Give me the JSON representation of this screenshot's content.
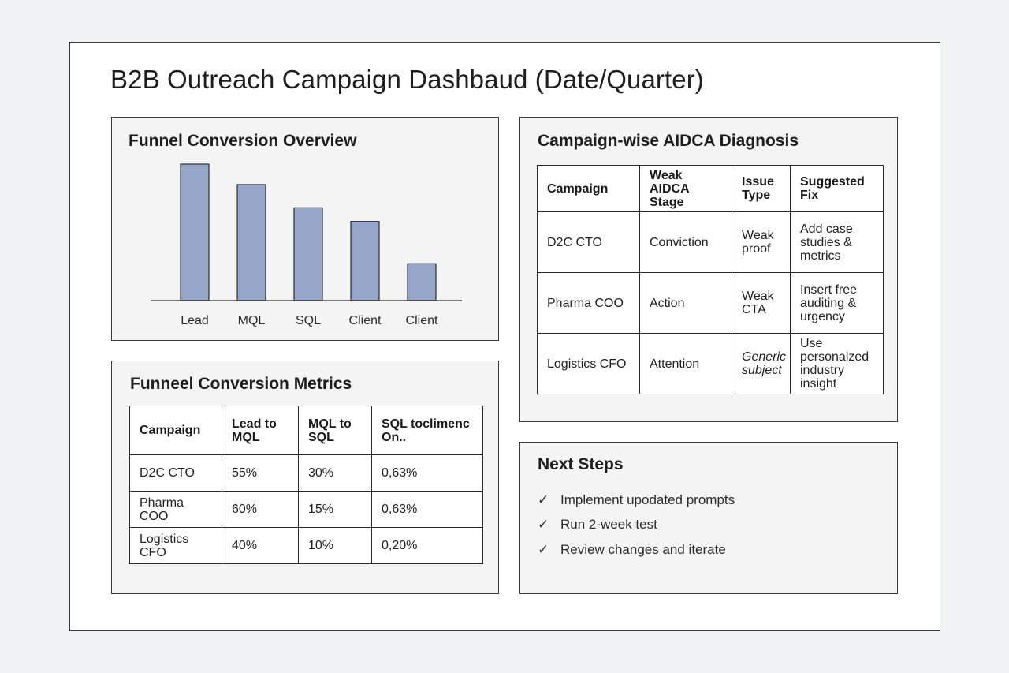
{
  "page": {
    "title": "B2B Outreach Campaign Dashbaud (Date/Quarter)"
  },
  "funnel_chart": {
    "title": "Funnel Conversion Overview"
  },
  "chart_data": {
    "type": "bar",
    "title": "Funnel Conversion Overview",
    "categories": [
      "Lead",
      "MQL",
      "SQL",
      "Client",
      "Client"
    ],
    "values": [
      100,
      85,
      68,
      58,
      27
    ],
    "xlabel": "",
    "ylabel": "",
    "ylim": [
      0,
      100
    ],
    "grid": false,
    "bar_color": "#96a6c8"
  },
  "metrics": {
    "title": "Funneel Conversion Metrics",
    "headers": [
      "Campaign",
      "Lead to MQL",
      "MQL to SQL",
      "SQL toclimenc On.."
    ],
    "rows": [
      [
        "D2C CTO",
        "55%",
        "30%",
        "0,63%"
      ],
      [
        "Pharma COO",
        "60%",
        "15%",
        "0,63%"
      ],
      [
        "Logistics CFO",
        "40%",
        "10%",
        "0,20%"
      ]
    ]
  },
  "diagnosis": {
    "title": "Campaign-wise AIDCA Diagnosis",
    "headers": [
      "Campaign",
      "Weak AIDCA Stage",
      "Issue Type",
      "Suggested Fix"
    ],
    "rows": [
      [
        "D2C CTO",
        "Conviction",
        "Weak proof",
        "Add case studies & metrics"
      ],
      [
        "Pharma COO",
        "Action",
        "Weak CTA",
        "Insert free auditing & urgency"
      ],
      [
        "Logistics CFO",
        "Attention",
        "Generic subject",
        "Use personalzed industry insight"
      ]
    ]
  },
  "next_steps": {
    "title": "Next Steps",
    "check_icon": "✓",
    "items": [
      "Implement upodated prompts",
      "Run 2-week test",
      "Review changes and iterate"
    ]
  },
  "colors": {
    "background": "#f1f2f4",
    "panel": "#f4f4f5",
    "border": "#3a3a3a",
    "bar": "#96a6c8"
  }
}
